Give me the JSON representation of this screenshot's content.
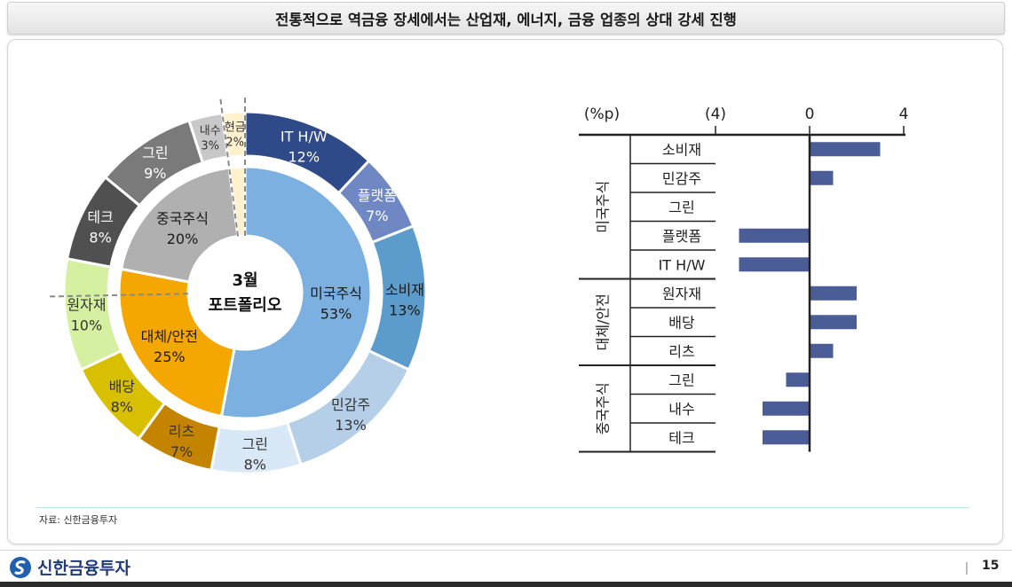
{
  "title": "전통적으로 역금융 장세에서는 산업재, 에너지, 금융 업종의 상대 강세 진행",
  "source": "자료: 신한금융투자",
  "footer": {
    "brand": "신한금융투자",
    "page": "15"
  },
  "chart_data": [
    {
      "type": "pie",
      "center_title": "3월",
      "center_subtitle": "포트폴리오",
      "inner_ring": [
        {
          "name": "미국주식",
          "value": 53,
          "label": "53%",
          "color": "#7bb0e0"
        },
        {
          "name": "대체/안전",
          "value": 25,
          "label": "25%",
          "color": "#f4a700"
        },
        {
          "name": "중국주식",
          "value": 20,
          "label": "20%",
          "color": "#b0b0b0"
        },
        {
          "name": "",
          "value": 2,
          "label": "",
          "color": "#fff1cc"
        }
      ],
      "outer_ring": [
        {
          "name": "IT H/W",
          "value": 12,
          "label": "12%",
          "color": "#2e4a88",
          "text_color": "#ffffff"
        },
        {
          "name": "플랫폼",
          "value": 7,
          "label": "7%",
          "color": "#6f88c4",
          "text_color": "#ffffff"
        },
        {
          "name": "소비재",
          "value": 13,
          "label": "13%",
          "color": "#5c9ccc",
          "text_color": "#1a1a1a"
        },
        {
          "name": "민감주",
          "value": 13,
          "label": "13%",
          "color": "#b5cfe9",
          "text_color": "#333333"
        },
        {
          "name": "그린",
          "value": 8,
          "label": "8%",
          "color": "#d8e8f7",
          "text_color": "#333333"
        },
        {
          "name": "리츠",
          "value": 7,
          "label": "7%",
          "color": "#c48400",
          "text_color": "#333333"
        },
        {
          "name": "배당",
          "value": 8,
          "label": "8%",
          "color": "#d8c000",
          "text_color": "#333333"
        },
        {
          "name": "원자재",
          "value": 10,
          "label": "10%",
          "color": "#d4f0a0",
          "text_color": "#333333"
        },
        {
          "name": "테크",
          "value": 8,
          "label": "8%",
          "color": "#505050",
          "text_color": "#ffffff"
        },
        {
          "name": "그린",
          "value": 9,
          "label": "9%",
          "color": "#7a7a7a",
          "text_color": "#ffffff"
        },
        {
          "name": "내수",
          "value": 3,
          "label": "3%",
          "color": "#c8c8c8",
          "text_color": "#333333"
        },
        {
          "name": "현금",
          "value": 2,
          "label": "2%",
          "color": "#fff1cc",
          "text_color": "#333333"
        }
      ]
    },
    {
      "type": "bar",
      "orientation": "horizontal",
      "unit_label": "(%p)",
      "xlim": [
        -8,
        4
      ],
      "xticks": [
        {
          "value": -4,
          "label": "(4)"
        },
        {
          "value": 0,
          "label": "0"
        },
        {
          "value": 4,
          "label": "4"
        }
      ],
      "bar_color": "#4a5d96",
      "groups": [
        {
          "name": "미국주식",
          "items": [
            {
              "label": "소비재",
              "value": 3.0
            },
            {
              "label": "민감주",
              "value": 1.0
            },
            {
              "label": "그린",
              "value": 0.0
            },
            {
              "label": "플랫폼",
              "value": -3.0
            },
            {
              "label": "IT H/W",
              "value": -3.0
            }
          ]
        },
        {
          "name": "대체/안전",
          "items": [
            {
              "label": "원자재",
              "value": 2.0
            },
            {
              "label": "배당",
              "value": 2.0
            },
            {
              "label": "리츠",
              "value": 1.0
            }
          ]
        },
        {
          "name": "중국주식",
          "items": [
            {
              "label": "그린",
              "value": -1.0
            },
            {
              "label": "내수",
              "value": -2.0
            },
            {
              "label": "테크",
              "value": -2.0
            }
          ]
        }
      ]
    }
  ]
}
